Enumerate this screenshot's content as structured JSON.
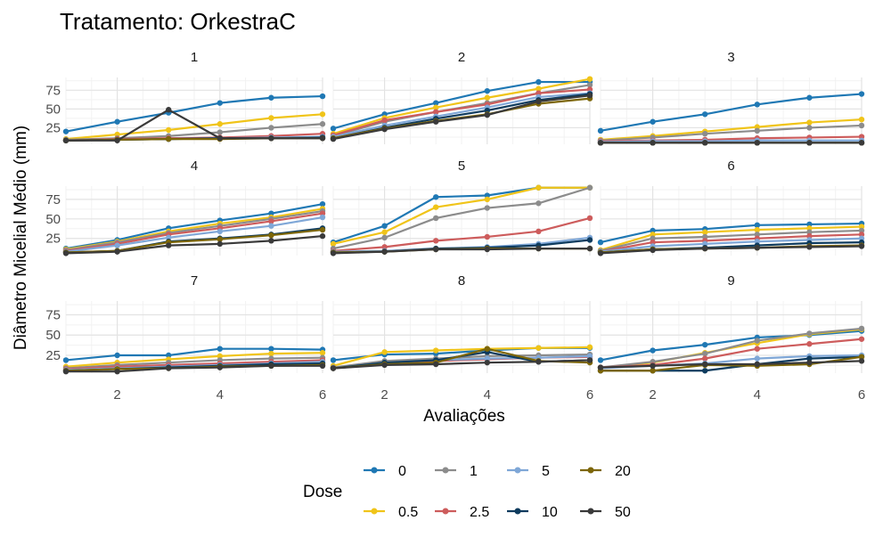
{
  "chart_data": {
    "type": "line",
    "title": "Tratamento: OrkestraC",
    "xlabel": "Avaliações",
    "ylabel": "Diâmetro Micelial Médio (mm)",
    "x": [
      1,
      2,
      3,
      4,
      5,
      6
    ],
    "x_ticks": [
      2,
      4,
      6
    ],
    "y_ticks": [
      25,
      50,
      75
    ],
    "xlim": [
      1,
      6
    ],
    "ylim": [
      3,
      92
    ],
    "grid": true,
    "legend": {
      "title": "Dose",
      "position": "bottom",
      "row1": [
        "0",
        "1",
        "5",
        "20"
      ],
      "row2": [
        "0.5",
        "2.5",
        "10",
        "50"
      ]
    },
    "series_colors": {
      "0": "#1f78b4",
      "0.5": "#f0c419",
      "1": "#8c8c8c",
      "2.5": "#cd5c5c",
      "5": "#7fa7d7",
      "10": "#0e3b5e",
      "20": "#7d6608",
      "50": "#3a3a3a"
    },
    "panels": [
      {
        "label": "1",
        "series": {
          "0": [
            20,
            33,
            45,
            58,
            65,
            67
          ],
          "0.5": [
            10,
            16,
            22,
            30,
            38,
            43
          ],
          "1": [
            9,
            11,
            14,
            19,
            25,
            30
          ],
          "2.5": [
            8,
            10,
            11,
            12,
            14,
            17
          ],
          "5": [
            8,
            9,
            10,
            11,
            12,
            13
          ],
          "10": [
            8,
            9,
            10,
            11,
            11,
            12
          ],
          "20": [
            8,
            9,
            10,
            10,
            11,
            11
          ],
          "50": [
            8,
            8,
            49,
            11,
            11,
            11
          ]
        }
      },
      {
        "label": "2",
        "series": {
          "0": [
            24,
            43,
            58,
            74,
            86,
            86
          ],
          "0.5": [
            17,
            38,
            52,
            65,
            77,
            90
          ],
          "1": [
            14,
            33,
            46,
            58,
            71,
            82
          ],
          "2.5": [
            15,
            35,
            46,
            56,
            71,
            76
          ],
          "5": [
            13,
            28,
            40,
            52,
            66,
            71
          ],
          "10": [
            11,
            25,
            37,
            48,
            62,
            70
          ],
          "20": [
            11,
            24,
            34,
            43,
            57,
            64
          ],
          "50": [
            10,
            23,
            33,
            42,
            60,
            68
          ]
        }
      },
      {
        "label": "3",
        "series": {
          "0": [
            21,
            33,
            43,
            56,
            65,
            70
          ],
          "0.5": [
            9,
            14,
            20,
            26,
            32,
            36
          ],
          "1": [
            8,
            12,
            17,
            21,
            25,
            28
          ],
          "2.5": [
            7,
            8,
            9,
            11,
            12,
            13
          ],
          "5": [
            6,
            7,
            7,
            8,
            8,
            8
          ],
          "10": [
            5,
            5,
            5,
            5,
            5,
            5
          ],
          "20": [
            5,
            5,
            5,
            5,
            5,
            5
          ],
          "50": [
            5,
            5,
            5,
            5,
            5,
            5
          ]
        }
      },
      {
        "label": "4",
        "series": {
          "0": [
            12,
            23,
            38,
            48,
            57,
            69
          ],
          "0.5": [
            11,
            21,
            34,
            44,
            52,
            63
          ],
          "1": [
            10,
            20,
            32,
            41,
            50,
            60
          ],
          "2.5": [
            9,
            18,
            30,
            38,
            47,
            57
          ],
          "5": [
            8,
            16,
            26,
            34,
            41,
            52
          ],
          "10": [
            7,
            9,
            21,
            25,
            30,
            38
          ],
          "20": [
            7,
            9,
            20,
            24,
            29,
            36
          ],
          "50": [
            6,
            8,
            16,
            18,
            22,
            28
          ]
        }
      },
      {
        "label": "5",
        "series": {
          "0": [
            20,
            41,
            78,
            80,
            90,
            90
          ],
          "0.5": [
            18,
            33,
            65,
            75,
            90,
            90
          ],
          "1": [
            12,
            26,
            51,
            64,
            70,
            90
          ],
          "2.5": [
            9,
            14,
            22,
            27,
            34,
            51
          ],
          "5": [
            8,
            9,
            12,
            14,
            18,
            26
          ],
          "10": [
            7,
            8,
            12,
            13,
            16,
            23
          ],
          "20": [
            7,
            8,
            11,
            12,
            12,
            12
          ],
          "50": [
            6,
            8,
            11,
            11,
            12,
            12
          ]
        }
      },
      {
        "label": "6",
        "series": {
          "0": [
            20,
            35,
            37,
            42,
            43,
            44
          ],
          "0.5": [
            10,
            30,
            33,
            36,
            38,
            40
          ],
          "1": [
            9,
            25,
            27,
            30,
            33,
            35
          ],
          "2.5": [
            8,
            20,
            22,
            25,
            28,
            30
          ],
          "5": [
            8,
            15,
            18,
            21,
            23,
            25
          ],
          "10": [
            7,
            11,
            13,
            16,
            19,
            20
          ],
          "20": [
            7,
            11,
            12,
            13,
            15,
            16
          ],
          "50": [
            6,
            10,
            12,
            13,
            14,
            15
          ]
        }
      },
      {
        "label": "7",
        "series": {
          "0": [
            19,
            25,
            25,
            33,
            33,
            32
          ],
          "0.5": [
            11,
            16,
            20,
            24,
            27,
            28
          ],
          "1": [
            9,
            13,
            16,
            19,
            21,
            22
          ],
          "2.5": [
            8,
            11,
            13,
            15,
            17,
            19
          ],
          "5": [
            7,
            9,
            11,
            13,
            15,
            17
          ],
          "10": [
            6,
            8,
            10,
            12,
            14,
            15
          ],
          "20": [
            6,
            8,
            9,
            11,
            12,
            13
          ],
          "50": [
            5,
            5,
            9,
            10,
            12,
            12
          ]
        }
      },
      {
        "label": "8",
        "series": {
          "0": [
            19,
            26,
            27,
            31,
            34,
            34
          ],
          "0.5": [
            12,
            29,
            31,
            33,
            34,
            35
          ],
          "1": [
            10,
            18,
            21,
            24,
            25,
            26
          ],
          "2.5": [
            9,
            14,
            18,
            20,
            22,
            23
          ],
          "5": [
            9,
            16,
            19,
            21,
            22,
            24
          ],
          "10": [
            9,
            16,
            19,
            29,
            17,
            19
          ],
          "20": [
            9,
            14,
            16,
            33,
            18,
            16
          ],
          "50": [
            9,
            13,
            14,
            16,
            17,
            19
          ]
        }
      },
      {
        "label": "9",
        "series": {
          "0": [
            19,
            31,
            38,
            47,
            50,
            55
          ],
          "0.5": [
            9,
            16,
            28,
            40,
            51,
            57
          ],
          "1": [
            10,
            17,
            27,
            43,
            52,
            58
          ],
          "2.5": [
            10,
            13,
            21,
            33,
            39,
            45
          ],
          "5": [
            9,
            12,
            15,
            21,
            24,
            25
          ],
          "10": [
            6,
            6,
            6,
            14,
            21,
            23
          ],
          "20": [
            6,
            6,
            13,
            12,
            14,
            23
          ],
          "50": [
            10,
            12,
            14,
            14,
            16,
            18
          ]
        }
      }
    ]
  }
}
